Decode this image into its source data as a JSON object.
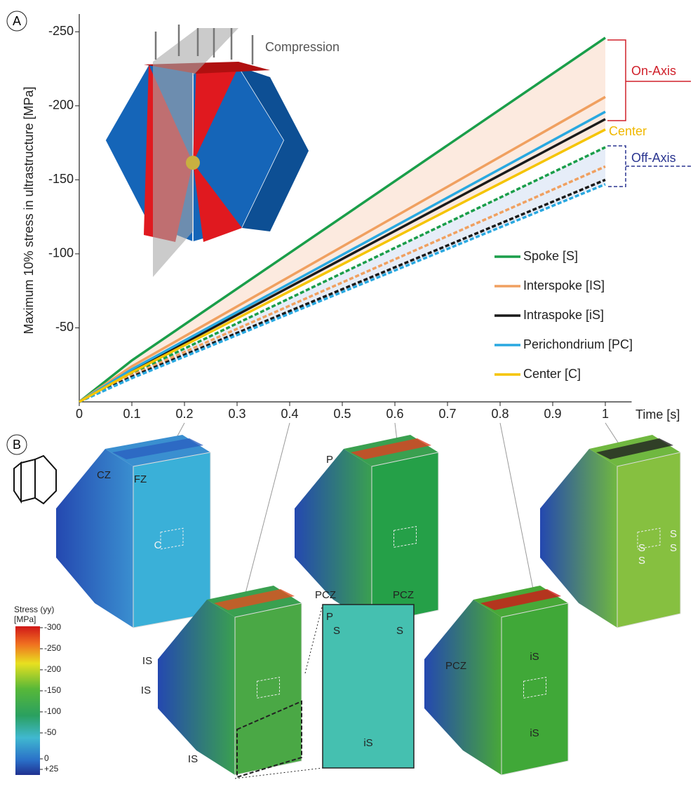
{
  "chart_data": {
    "type": "line",
    "panel_label": "A",
    "y_label": "Maximum 10% stress in ultrastructure [MPa]",
    "x_label": "Time [s]",
    "x": [
      0,
      0.1,
      1
    ],
    "xlim": [
      0,
      1.05
    ],
    "xticks": [
      0,
      0.1,
      0.2,
      0.3,
      0.4,
      0.5,
      0.6,
      0.7,
      0.8,
      0.9,
      1
    ],
    "ylim": [
      0,
      -262
    ],
    "yticks": [
      -250,
      -200,
      -150,
      -100,
      -50
    ],
    "series": [
      {
        "name": "Spoke [S]",
        "color": "#1a9e4a",
        "values": [
          0,
          -28,
          -246
        ],
        "off_axis_values": [
          0,
          -19,
          -172
        ]
      },
      {
        "name": "Interspoke [IS]",
        "color": "#f0a060",
        "values": [
          0,
          -24,
          -206
        ],
        "off_axis_values": [
          0,
          -18,
          -159
        ]
      },
      {
        "name": "Intraspoke [iS]",
        "color": "#1a1a1a",
        "values": [
          0,
          -21,
          -191
        ],
        "off_axis_values": [
          0,
          -17,
          -150
        ]
      },
      {
        "name": "Perichondrium [PC]",
        "color": "#29a8e0",
        "values": [
          0,
          -22,
          -196
        ],
        "off_axis_values": [
          0,
          -16,
          -147
        ]
      },
      {
        "name": "Center [C]",
        "color": "#f5c400",
        "values": [
          0,
          -20,
          -184
        ]
      }
    ],
    "annotations": {
      "compression": "Compression",
      "on_axis": "On-Axis",
      "center": "Center",
      "off_axis": "Off-Axis"
    }
  },
  "panel_b": {
    "panel_label": "B",
    "colorbar": {
      "title": "Stress (yy)",
      "unit": "[MPa]",
      "labels": [
        "-300",
        "-250",
        "-200",
        "-150",
        "-100",
        "-50",
        "0",
        "+25"
      ]
    },
    "labels": [
      "CZ",
      "FZ",
      "C",
      "P",
      "P",
      "IS",
      "IS",
      "IS",
      "PCZ",
      "PCZ",
      "S",
      "S",
      "iS",
      "PCZ",
      "iS",
      "iS",
      "S",
      "S",
      "S",
      "S"
    ]
  }
}
